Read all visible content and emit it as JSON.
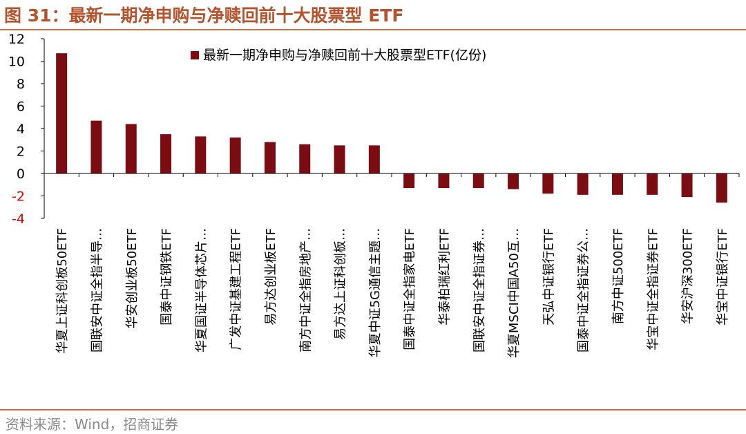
{
  "figure": {
    "title": "图 31：最新一期净申购与净赎回前十大股票型 ETF",
    "source": "资料来源：Wind，招商证券"
  },
  "colors": {
    "bar": "#7b0d12",
    "title": "#b5532c",
    "negative_tick": "#e00000",
    "axis": "#000000"
  },
  "chart_data": {
    "type": "bar",
    "title": "",
    "legend": "最新一期净申购与净赎回前十大股票型ETF(亿份)",
    "legend_position": "top-center",
    "ylim": [
      -4,
      12
    ],
    "yticks": [
      12,
      10,
      8,
      6,
      4,
      2,
      0,
      -2,
      -4
    ],
    "categories": [
      "华夏上证科创板50ETF",
      "国联安中证全指半导…",
      "华安创业板50ETF",
      "国泰中证钢铁ETF",
      "华夏国证半导体芯片…",
      "广发中证基建工程ETF",
      "易方达创业板ETF",
      "南方中证全指房地产…",
      "易方达上证科创板…",
      "华夏中证5G通信主题…",
      "国泰中证全指家电ETF",
      "华泰柏瑞红利ETF",
      "国联安中证全指证券…",
      "华夏MSCI中国A50互…",
      "天弘中证银行ETF",
      "国泰中证全指证券公…",
      "南方中证500ETF",
      "华宝中证全指证券ETF",
      "华安沪深300ETF",
      "华宝中证银行ETF"
    ],
    "values": [
      10.7,
      4.7,
      4.4,
      3.5,
      3.3,
      3.2,
      2.8,
      2.6,
      2.5,
      2.5,
      -1.3,
      -1.3,
      -1.3,
      -1.4,
      -1.8,
      -1.9,
      -1.9,
      -1.9,
      -2.1,
      -2.6
    ]
  }
}
